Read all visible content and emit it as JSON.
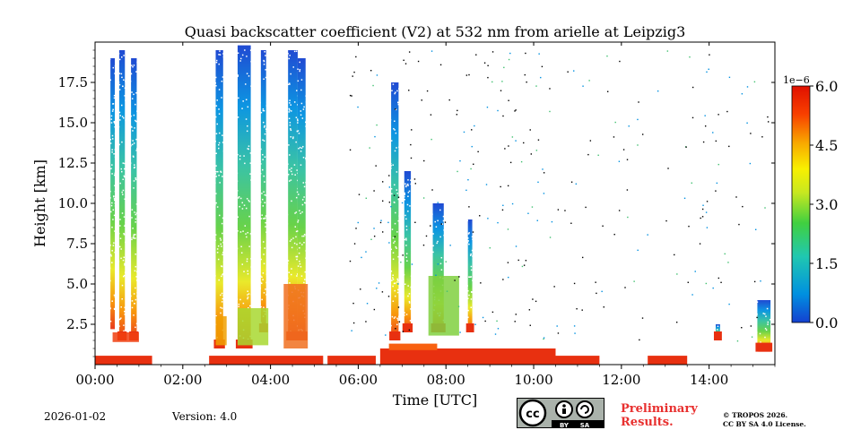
{
  "chart_data": {
    "type": "heatmap",
    "title": "Quasi backscatter coefficient (V2) at 532 nm from arielle at Leipzig3",
    "xlabel": "Time [UTC]",
    "ylabel": "Height [km]",
    "xlim_hours": [
      0,
      15.5
    ],
    "ylim_km": [
      0,
      20
    ],
    "x_ticks": [
      {
        "hour": 0,
        "label": "00:00"
      },
      {
        "hour": 2,
        "label": "02:00"
      },
      {
        "hour": 4,
        "label": "04:00"
      },
      {
        "hour": 6,
        "label": "06:00"
      },
      {
        "hour": 8,
        "label": "08:00"
      },
      {
        "hour": 10,
        "label": "10:00"
      },
      {
        "hour": 12,
        "label": "12:00"
      },
      {
        "hour": 14,
        "label": "14:00"
      }
    ],
    "y_ticks": [
      {
        "km": 2.5,
        "label": "2.5"
      },
      {
        "km": 5.0,
        "label": "5.0"
      },
      {
        "km": 7.5,
        "label": "7.5"
      },
      {
        "km": 10.0,
        "label": "10.0"
      },
      {
        "km": 12.5,
        "label": "12.5"
      },
      {
        "km": 15.0,
        "label": "15.0"
      },
      {
        "km": 17.5,
        "label": "17.5"
      }
    ],
    "colorbar": {
      "min": 0.0,
      "max": 6.0,
      "exponent_label": "1e−6",
      "ticks": [
        {
          "value": 0.0,
          "label": "0.0"
        },
        {
          "value": 1.5,
          "label": "1.5"
        },
        {
          "value": 3.0,
          "label": "3.0"
        },
        {
          "value": 4.5,
          "label": "4.5"
        },
        {
          "value": 6.0,
          "label": "6.0"
        }
      ],
      "colors": [
        "#1440d0",
        "#0090e0",
        "#20c8b0",
        "#40d040",
        "#c8e820",
        "#f8f000",
        "#f8a800",
        "#f84000",
        "#e01000"
      ]
    },
    "approx_features": [
      {
        "kind": "column",
        "t0": 0.35,
        "t1": 0.45,
        "top_km": 19.0,
        "bottom_km": 2.2
      },
      {
        "kind": "column",
        "t0": 0.55,
        "t1": 0.68,
        "top_km": 19.5,
        "bottom_km": 1.5
      },
      {
        "kind": "column",
        "t0": 0.82,
        "t1": 0.95,
        "top_km": 19.0,
        "bottom_km": 1.5
      },
      {
        "kind": "column",
        "t0": 2.75,
        "t1": 2.92,
        "top_km": 19.5,
        "bottom_km": 1.0
      },
      {
        "kind": "column",
        "t0": 3.25,
        "t1": 3.55,
        "top_km": 19.8,
        "bottom_km": 1.0
      },
      {
        "kind": "column",
        "t0": 3.78,
        "t1": 3.9,
        "top_km": 19.5,
        "bottom_km": 2.0
      },
      {
        "kind": "column",
        "t0": 4.4,
        "t1": 4.62,
        "top_km": 19.5,
        "bottom_km": 1.5
      },
      {
        "kind": "column",
        "t0": 4.62,
        "t1": 4.8,
        "top_km": 19.0,
        "bottom_km": 1.5
      },
      {
        "kind": "column",
        "t0": 6.75,
        "t1": 6.92,
        "top_km": 17.5,
        "bottom_km": 1.5
      },
      {
        "kind": "column",
        "t0": 7.05,
        "t1": 7.2,
        "top_km": 12.0,
        "bottom_km": 2.0
      },
      {
        "kind": "column",
        "t0": 7.7,
        "t1": 7.95,
        "top_km": 10.0,
        "bottom_km": 2.0
      },
      {
        "kind": "column",
        "t0": 8.5,
        "t1": 8.6,
        "top_km": 9.0,
        "bottom_km": 2.0
      },
      {
        "kind": "column",
        "t0": 14.15,
        "t1": 14.25,
        "top_km": 2.5,
        "bottom_km": 1.5
      },
      {
        "kind": "column",
        "t0": 15.1,
        "t1": 15.4,
        "top_km": 4.0,
        "bottom_km": 0.8
      },
      {
        "kind": "surface_layer",
        "t0": 0.0,
        "t1": 15.5,
        "top_km": 0.9
      }
    ]
  },
  "footer": {
    "date": "2026-01-02",
    "version": "Version: 4.0",
    "preliminary_line1": "Preliminary",
    "preliminary_line2": "Results.",
    "copyright_line1": "© TROPOS 2026.",
    "copyright_line2": "CC BY SA 4.0 License.",
    "cc_badge_text_by": "BY",
    "cc_badge_text_sa": "SA",
    "cc_badge_text_cc": "cc"
  }
}
